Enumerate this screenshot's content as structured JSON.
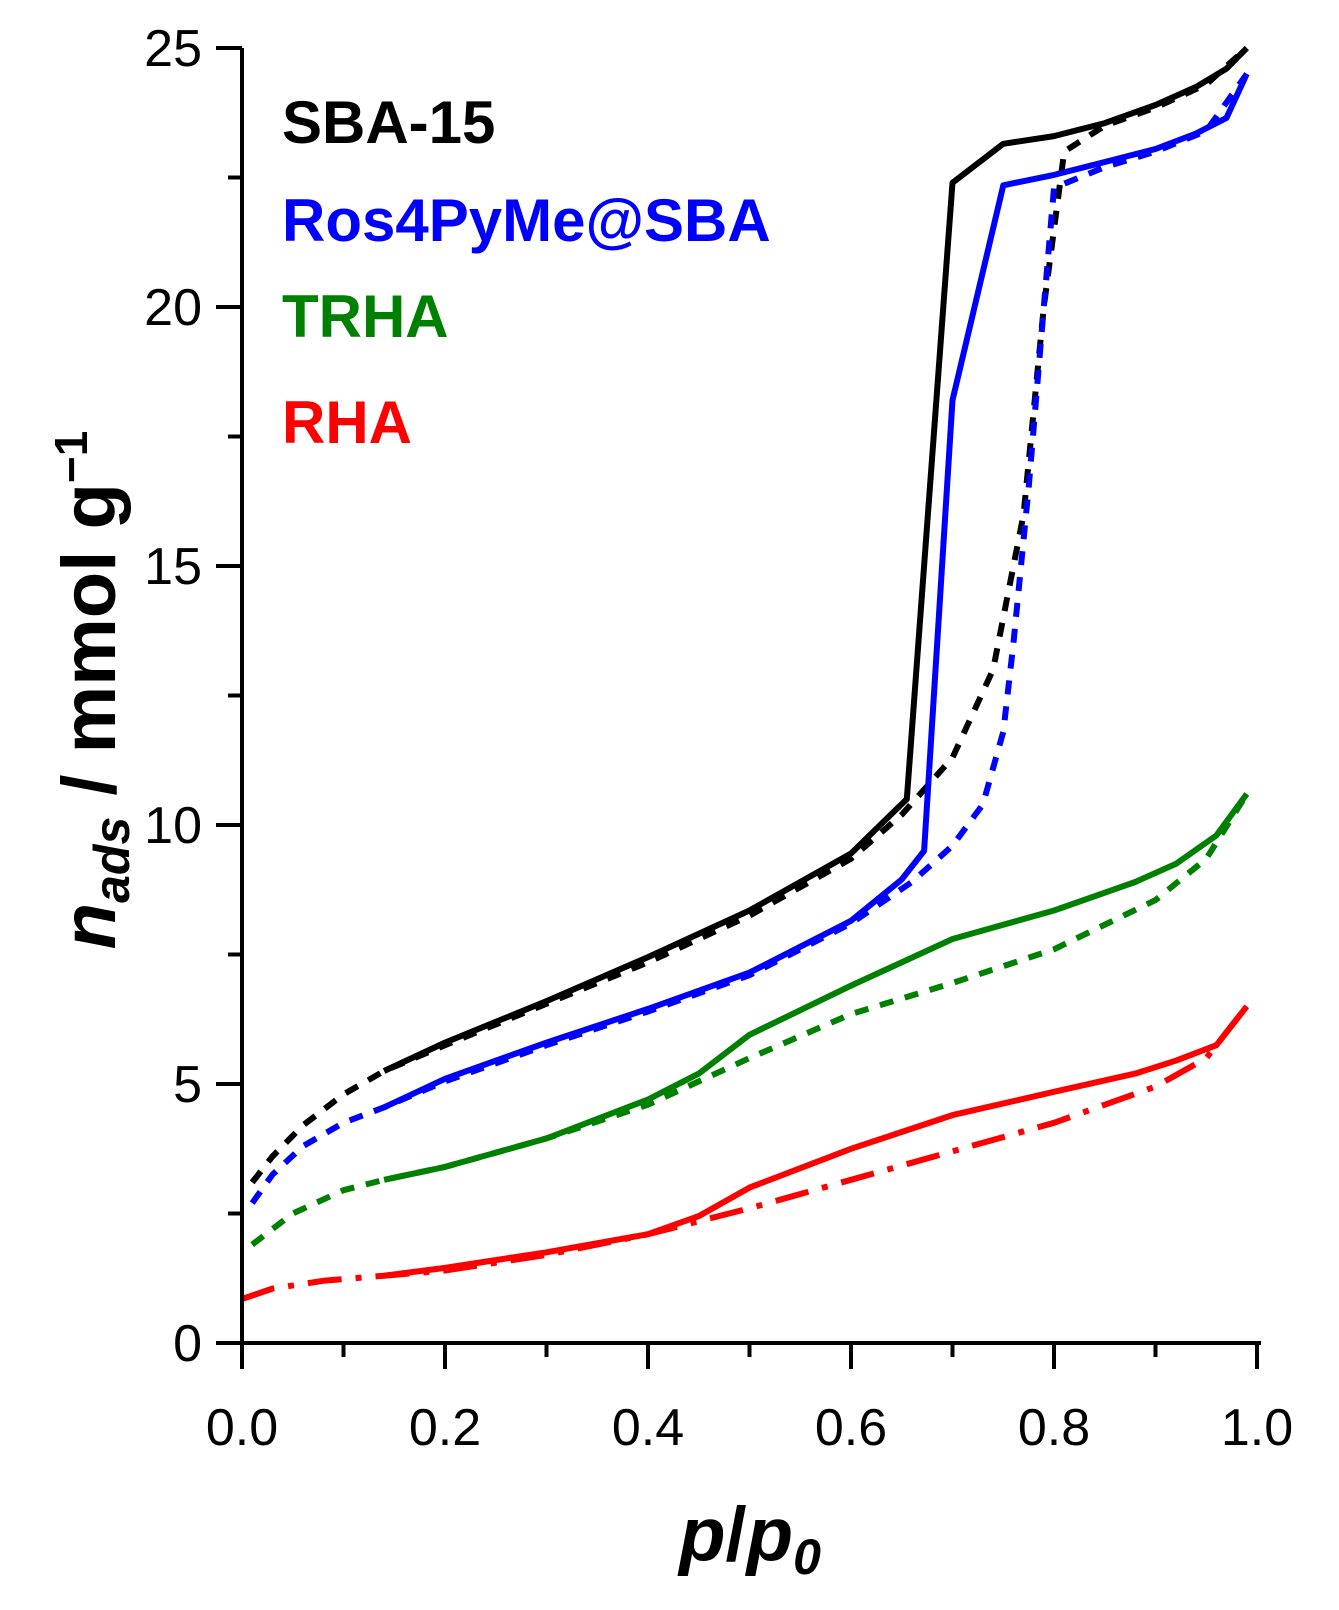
{
  "chart_data": {
    "type": "line",
    "title": "",
    "xlabel": "p/p0",
    "ylabel": "n_ads / mmol g^-1",
    "xlabel_parts": {
      "p1": "p",
      "slash": "/",
      "p2": "p",
      "sub": "0"
    },
    "ylabel_parts": {
      "n": "n",
      "sub": "ads",
      "unit": " / mmol g",
      "sup": "−1"
    },
    "xlim": [
      0.0,
      1.0
    ],
    "ylim": [
      0,
      25
    ],
    "xticks": [
      "0.0",
      "0.2",
      "0.4",
      "0.6",
      "0.8",
      "1.0"
    ],
    "yticks": [
      "0",
      "5",
      "10",
      "15",
      "20",
      "25"
    ],
    "grid": false,
    "legend_position": "top-left",
    "series": [
      {
        "name": "SBA-15",
        "color": "#000000",
        "adsorption": [
          [
            0.01,
            3.1
          ],
          [
            0.03,
            3.6
          ],
          [
            0.06,
            4.2
          ],
          [
            0.1,
            4.8
          ],
          [
            0.14,
            5.25
          ],
          [
            0.2,
            5.75
          ],
          [
            0.3,
            6.55
          ],
          [
            0.4,
            7.35
          ],
          [
            0.5,
            8.25
          ],
          [
            0.6,
            9.35
          ],
          [
            0.65,
            10.2
          ],
          [
            0.7,
            11.3
          ],
          [
            0.74,
            13.0
          ],
          [
            0.77,
            16.0
          ],
          [
            0.79,
            20.0
          ],
          [
            0.81,
            23.0
          ],
          [
            0.85,
            23.5
          ],
          [
            0.9,
            23.85
          ],
          [
            0.95,
            24.3
          ],
          [
            0.99,
            25.0
          ]
        ],
        "desorption": [
          [
            0.99,
            25.0
          ],
          [
            0.97,
            24.6
          ],
          [
            0.94,
            24.25
          ],
          [
            0.9,
            23.9
          ],
          [
            0.85,
            23.55
          ],
          [
            0.8,
            23.3
          ],
          [
            0.75,
            23.15
          ],
          [
            0.7,
            22.4
          ],
          [
            0.655,
            10.5
          ],
          [
            0.6,
            9.45
          ],
          [
            0.5,
            8.35
          ],
          [
            0.4,
            7.45
          ],
          [
            0.3,
            6.6
          ],
          [
            0.2,
            5.8
          ],
          [
            0.14,
            5.25
          ]
        ]
      },
      {
        "name": "Ros4PyMe@SBA",
        "color": "#0000ff",
        "adsorption": [
          [
            0.01,
            2.7
          ],
          [
            0.03,
            3.25
          ],
          [
            0.06,
            3.8
          ],
          [
            0.1,
            4.25
          ],
          [
            0.14,
            4.55
          ],
          [
            0.2,
            5.05
          ],
          [
            0.3,
            5.75
          ],
          [
            0.4,
            6.4
          ],
          [
            0.5,
            7.1
          ],
          [
            0.6,
            8.1
          ],
          [
            0.66,
            8.9
          ],
          [
            0.7,
            9.6
          ],
          [
            0.73,
            10.4
          ],
          [
            0.75,
            11.8
          ],
          [
            0.76,
            13.5
          ],
          [
            0.775,
            16.5
          ],
          [
            0.79,
            20.0
          ],
          [
            0.8,
            22.3
          ],
          [
            0.85,
            22.7
          ],
          [
            0.9,
            23.0
          ],
          [
            0.95,
            23.4
          ],
          [
            0.99,
            24.5
          ]
        ],
        "desorption": [
          [
            0.99,
            24.5
          ],
          [
            0.97,
            23.65
          ],
          [
            0.94,
            23.35
          ],
          [
            0.9,
            23.05
          ],
          [
            0.85,
            22.8
          ],
          [
            0.8,
            22.55
          ],
          [
            0.75,
            22.35
          ],
          [
            0.7,
            18.2
          ],
          [
            0.672,
            9.5
          ],
          [
            0.65,
            8.95
          ],
          [
            0.6,
            8.15
          ],
          [
            0.5,
            7.15
          ],
          [
            0.4,
            6.45
          ],
          [
            0.3,
            5.8
          ],
          [
            0.2,
            5.1
          ],
          [
            0.14,
            4.55
          ]
        ]
      },
      {
        "name": "TRHA",
        "color": "#008000",
        "adsorption": [
          [
            0.01,
            1.9
          ],
          [
            0.05,
            2.5
          ],
          [
            0.1,
            2.95
          ],
          [
            0.14,
            3.15
          ],
          [
            0.2,
            3.4
          ],
          [
            0.3,
            3.95
          ],
          [
            0.4,
            4.6
          ],
          [
            0.5,
            5.5
          ],
          [
            0.6,
            6.35
          ],
          [
            0.7,
            6.95
          ],
          [
            0.8,
            7.6
          ],
          [
            0.9,
            8.55
          ],
          [
            0.95,
            9.35
          ],
          [
            0.99,
            10.6
          ]
        ],
        "desorption": [
          [
            0.99,
            10.6
          ],
          [
            0.96,
            9.8
          ],
          [
            0.92,
            9.25
          ],
          [
            0.88,
            8.9
          ],
          [
            0.8,
            8.35
          ],
          [
            0.7,
            7.8
          ],
          [
            0.6,
            6.9
          ],
          [
            0.5,
            5.95
          ],
          [
            0.45,
            5.2
          ],
          [
            0.4,
            4.7
          ],
          [
            0.3,
            3.95
          ],
          [
            0.2,
            3.4
          ],
          [
            0.14,
            3.15
          ]
        ]
      },
      {
        "name": "RHA",
        "color": "#ff0000",
        "adsorption": [
          [
            0.0,
            0.85
          ],
          [
            0.03,
            1.05
          ],
          [
            0.08,
            1.2
          ],
          [
            0.14,
            1.3
          ],
          [
            0.2,
            1.4
          ],
          [
            0.3,
            1.7
          ],
          [
            0.4,
            2.1
          ],
          [
            0.5,
            2.6
          ],
          [
            0.6,
            3.15
          ],
          [
            0.7,
            3.7
          ],
          [
            0.8,
            4.25
          ],
          [
            0.9,
            4.95
          ],
          [
            0.95,
            5.5
          ],
          [
            0.99,
            6.5
          ]
        ],
        "desorption": [
          [
            0.99,
            6.5
          ],
          [
            0.96,
            5.75
          ],
          [
            0.92,
            5.45
          ],
          [
            0.88,
            5.2
          ],
          [
            0.8,
            4.85
          ],
          [
            0.7,
            4.4
          ],
          [
            0.6,
            3.75
          ],
          [
            0.5,
            3.0
          ],
          [
            0.45,
            2.45
          ],
          [
            0.4,
            2.1
          ],
          [
            0.3,
            1.75
          ],
          [
            0.2,
            1.45
          ],
          [
            0.14,
            1.3
          ]
        ]
      }
    ]
  }
}
